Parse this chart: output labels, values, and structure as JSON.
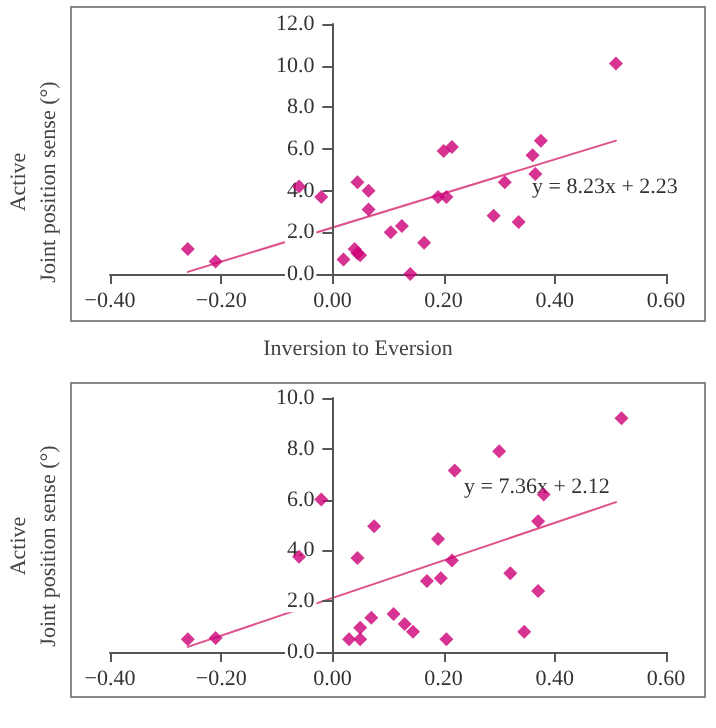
{
  "chart_data": [
    {
      "type": "scatter",
      "xlabel": "Inversion to Eversion",
      "ylabel": "Active\nJoint position sense (°)",
      "marker": "diamond",
      "annotations": [
        "y = 8.23x + 2.23"
      ],
      "xlim": [
        -0.4,
        0.6
      ],
      "xticks": [
        {
          "value": -0.4,
          "label": "−0.40"
        },
        {
          "value": -0.2,
          "label": "−0.20"
        },
        {
          "value": 0,
          "label": "0.00"
        },
        {
          "value": 0.2,
          "label": "0.20"
        },
        {
          "value": 0.4,
          "label": "0.40"
        },
        {
          "value": 0.6,
          "label": "0.60"
        }
      ],
      "ylim": [
        0,
        12
      ],
      "yticks": [
        {
          "value": 0,
          "label": "0.0"
        },
        {
          "value": 2,
          "label": "2.0"
        },
        {
          "value": 4,
          "label": "4.0"
        },
        {
          "value": 6,
          "label": "6.0"
        },
        {
          "value": 8,
          "label": "8.0"
        },
        {
          "value": 10,
          "label": "10.0"
        },
        {
          "value": 12,
          "label": "12.0"
        }
      ],
      "series": [
        {
          "type": "scatter",
          "color": "#cc0077",
          "x": [
            -0.26,
            -0.21,
            -0.06,
            -0.02,
            0.02,
            0.04,
            0.045,
            0.05,
            0.045,
            0.065,
            0.065,
            0.105,
            0.125,
            0.14,
            0.165,
            0.19,
            0.205,
            0.2,
            0.215,
            0.29,
            0.31,
            0.335,
            0.36,
            0.365,
            0.375,
            0.51
          ],
          "values": [
            1.2,
            0.6,
            4.2,
            3.7,
            0.7,
            1.2,
            1.0,
            0.9,
            4.4,
            4.0,
            3.1,
            2.0,
            2.3,
            0,
            1.5,
            3.7,
            3.7,
            5.9,
            6.1,
            2.8,
            4.4,
            2.5,
            5.7,
            4.8,
            6.4,
            10.1
          ]
        },
        {
          "type": "line",
          "color": "#e0508a",
          "marker": "none",
          "x": [
            -0.26,
            0.51
          ],
          "values": [
            0.1,
            6.4
          ]
        }
      ]
    },
    {
      "type": "scatter",
      "ylabel": "Active\nJoint position sense (°)",
      "marker": "diamond",
      "annotations": [
        "y = 7.36x + 2.12"
      ],
      "xlim": [
        -0.4,
        0.6
      ],
      "xticks": [
        {
          "value": -0.4,
          "label": "−0.40"
        },
        {
          "value": -0.2,
          "label": "−0.20"
        },
        {
          "value": 0,
          "label": "0.00"
        },
        {
          "value": 0.2,
          "label": "0.20"
        },
        {
          "value": 0.4,
          "label": "0.40"
        },
        {
          "value": 0.6,
          "label": "0.60"
        }
      ],
      "ylim": [
        0,
        10
      ],
      "yticks": [
        {
          "value": 0,
          "label": "0.0"
        },
        {
          "value": 2,
          "label": "2.0"
        },
        {
          "value": 4,
          "label": "4.0"
        },
        {
          "value": 6,
          "label": "6.0"
        },
        {
          "value": 8,
          "label": "8.0"
        },
        {
          "value": 10,
          "label": "10.0"
        }
      ],
      "series": [
        {
          "type": "scatter",
          "color": "#cc0077",
          "x": [
            -0.26,
            -0.21,
            -0.02,
            -0.06,
            0.045,
            0.075,
            0.03,
            0.05,
            0.05,
            0.07,
            0.11,
            0.13,
            0.145,
            0.17,
            0.195,
            0.19,
            0.215,
            0.205,
            0.22,
            0.3,
            0.32,
            0.345,
            0.37,
            0.37,
            0.38,
            0.52
          ],
          "values": [
            0.5,
            0.55,
            6.0,
            3.75,
            3.7,
            4.95,
            0.5,
            0.5,
            0.95,
            1.35,
            1.5,
            1.1,
            0.8,
            2.8,
            2.9,
            4.45,
            3.6,
            0.5,
            7.15,
            7.9,
            3.1,
            0.8,
            2.4,
            5.15,
            6.2,
            9.2
          ]
        },
        {
          "type": "line",
          "color": "#e0508a",
          "marker": "none",
          "x": [
            -0.26,
            0.51
          ],
          "values": [
            0.2,
            5.9
          ]
        }
      ]
    }
  ]
}
